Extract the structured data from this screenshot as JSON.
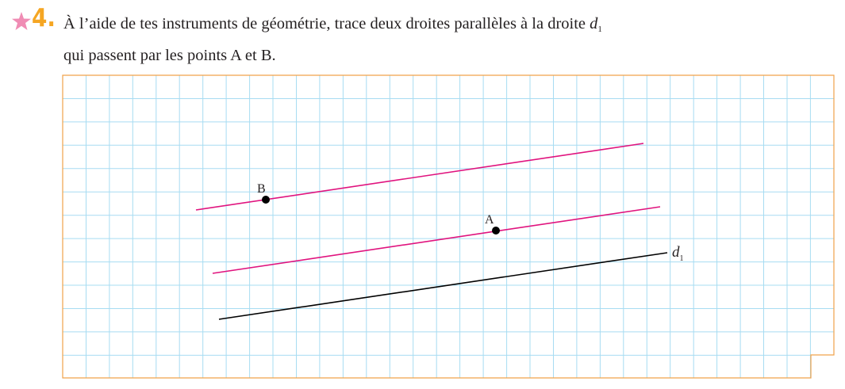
{
  "exercise": {
    "number": "4.",
    "difficulty_icon": "star-icon",
    "instruction_line1": "À l’aide de tes instruments de géométrie, trace deux droites parallèles à la droite",
    "instruction_var": "d",
    "instruction_sub": "1",
    "instruction_line2": "qui passent par les points A et B."
  },
  "colors": {
    "star": "#f08cb4",
    "number": "#f5a623",
    "grid_line": "#a7dcf2",
    "grid_border": "#f0a24b",
    "parallel_line": "#e0137e",
    "d1_line": "#000000"
  },
  "figure": {
    "point_A_label": "A",
    "point_B_label": "B",
    "line_label": "d",
    "line_label_sub": "1"
  }
}
